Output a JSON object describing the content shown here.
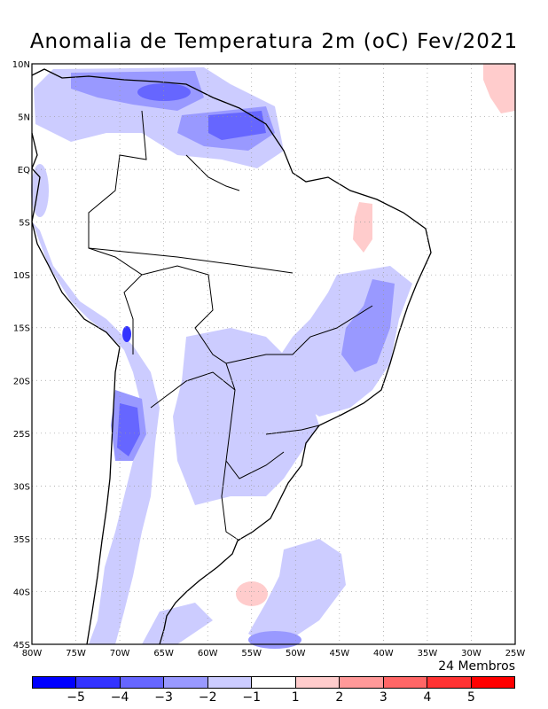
{
  "title": "Anomalia de Temperatura 2m (oC) Fev/2021",
  "lon_labels": [
    "80W",
    "75W",
    "70W",
    "65W",
    "60W",
    "55W",
    "50W",
    "45W",
    "40W",
    "35W",
    "30W",
    "25W"
  ],
  "lat_labels": [
    "10N",
    "5N",
    "EQ",
    "5S",
    "10S",
    "15S",
    "20S",
    "25S",
    "30S",
    "35S",
    "40S",
    "45S"
  ],
  "members": "24 Membros",
  "colorbar": {
    "colors": [
      "#0000ff",
      "#3333ff",
      "#6666ff",
      "#9999ff",
      "#ccccff",
      "#ffffff",
      "#ffcccc",
      "#ff9999",
      "#ff6666",
      "#ff3333",
      "#ff0000"
    ],
    "labels": [
      "-5",
      "-4",
      "-3",
      "-2",
      "-1",
      "1",
      "2",
      "3",
      "4",
      "5"
    ]
  }
}
